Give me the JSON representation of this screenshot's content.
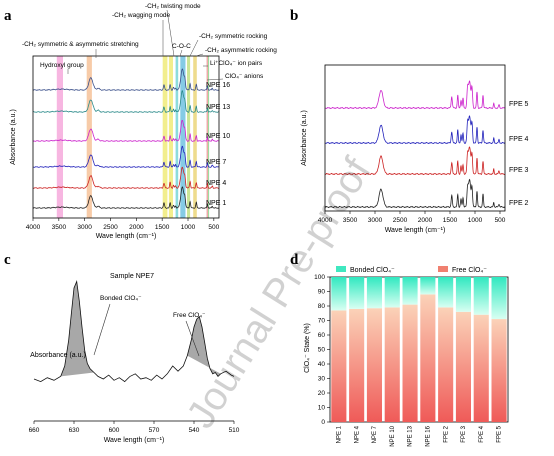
{
  "chart_data": [
    {
      "panel": "a",
      "type": "line",
      "ylabel": "Absorbance (a.u.)",
      "xlabel": "Wave length (cm⁻¹)",
      "xlim": [
        4000,
        400
      ],
      "xticks": [
        4000,
        3500,
        3000,
        2500,
        2000,
        1500,
        1000,
        500
      ],
      "series": [
        {
          "name": "NPE 1",
          "color": "#222222"
        },
        {
          "name": "NPE 4",
          "color": "#cc2222"
        },
        {
          "name": "NPE 7",
          "color": "#2222bb"
        },
        {
          "name": "NPE 10",
          "color": "#cc22cc"
        },
        {
          "name": "NPE 13",
          "color": "#2a8a8a"
        },
        {
          "name": "NPE 16",
          "color": "#3a4f8a"
        }
      ],
      "bands": [
        {
          "x": [
            3540,
            3420
          ],
          "color": "#f07ac8",
          "label": "Hydroxyl group"
        },
        {
          "x": [
            2960,
            2860
          ],
          "color": "#f0a060",
          "label": "-CH₂ symmetric & asymmetric stretching"
        },
        {
          "x": [
            1490,
            1400
          ],
          "color": "#e8e030",
          "label": "-CH₂ wagging mode"
        },
        {
          "x": [
            1370,
            1290
          ],
          "color": "#e8e030",
          "label": "-CH₂ twisting mode"
        },
        {
          "x": [
            1240,
            1190
          ],
          "color": "#30c0c0",
          "label": "C-O-C"
        },
        {
          "x": [
            1150,
            1050
          ],
          "color": "#20a0d0",
          "label": "C-O-C"
        },
        {
          "x": [
            1020,
            960
          ],
          "color": "#a0d040",
          "label": "-CH₂ symmetric rocking"
        },
        {
          "x": [
            900,
            830
          ],
          "color": "#e0c030",
          "label": "-CH₂ asymmetric rocking"
        },
        {
          "x": [
            640,
            615
          ],
          "color": "#e05050",
          "label": "Li⁺ClO₄⁻ ion pairs"
        },
        {
          "x": [
            612,
            590
          ],
          "color": "#50c050",
          "label": "ClO₄⁻ anions"
        }
      ],
      "annotations": [
        "-CH₂ twisting mode",
        "-CH₂ wagging mode",
        "-CH₂ symmetric & asymmetric stretching",
        "C-O-C",
        "-CH₂ symmetric rocking",
        "-CH₂ asymmetric rocking",
        "Li⁺ClO₄⁻ ion pairs",
        "ClO₄⁻ anions",
        "Hydroxyl group"
      ]
    },
    {
      "panel": "b",
      "type": "line",
      "ylabel": "Absorbance (a.u.)",
      "xlabel": "Wave length (cm⁻¹)",
      "xlim": [
        4000,
        400
      ],
      "xticks": [
        4000,
        3500,
        3000,
        2500,
        2000,
        1500,
        1000,
        500
      ],
      "series": [
        {
          "name": "FPE 2",
          "color": "#222222"
        },
        {
          "name": "FPE 3",
          "color": "#cc2222"
        },
        {
          "name": "FPE 4",
          "color": "#2222bb"
        },
        {
          "name": "FPE 5",
          "color": "#cc22cc"
        }
      ]
    },
    {
      "panel": "c",
      "type": "line",
      "title": "Sample NPE7",
      "ylabel": "Absorbance (a.u.)",
      "xlabel": "Wave length (cm⁻¹)",
      "xlim": [
        660,
        510
      ],
      "xticks": [
        660,
        630,
        600,
        570,
        540,
        510
      ],
      "x": [
        660,
        655,
        650,
        645,
        640,
        637,
        634,
        632,
        630,
        628,
        626,
        624,
        622,
        620,
        618,
        615,
        612,
        608,
        604,
        600,
        596,
        592,
        588,
        584,
        580,
        576,
        572,
        568,
        564,
        560,
        556,
        552,
        548,
        545,
        542,
        540,
        538,
        536,
        534,
        532,
        530,
        528,
        526,
        524,
        522,
        520,
        516,
        512,
        510
      ],
      "y": [
        0.2,
        0.18,
        0.21,
        0.19,
        0.22,
        0.3,
        0.5,
        0.7,
        0.9,
        0.95,
        0.8,
        0.6,
        0.42,
        0.32,
        0.28,
        0.25,
        0.22,
        0.2,
        0.23,
        0.19,
        0.21,
        0.18,
        0.22,
        0.24,
        0.2,
        0.21,
        0.19,
        0.23,
        0.2,
        0.24,
        0.3,
        0.26,
        0.3,
        0.38,
        0.5,
        0.6,
        0.66,
        0.68,
        0.6,
        0.48,
        0.36,
        0.28,
        0.24,
        0.25,
        0.22,
        0.24,
        0.26,
        0.23,
        0.22
      ],
      "annotations": [
        "Bonded ClO₄⁻",
        "Free ClO₄⁻"
      ]
    },
    {
      "panel": "d",
      "type": "bar",
      "stacked": true,
      "ylabel": "ClO₄⁻ State (%)",
      "ylim": [
        0,
        100
      ],
      "yticks": [
        0,
        10,
        20,
        30,
        40,
        50,
        60,
        70,
        80,
        90,
        100
      ],
      "categories": [
        "NPE 1",
        "NPE 4",
        "NPE 7",
        "NPE 10",
        "NPE 13",
        "NPE 16",
        "FPE 2",
        "FPE 3",
        "FPE 4",
        "FPE 5"
      ],
      "series": [
        {
          "name": "Free ClO₄⁻",
          "values": [
            77,
            78,
            78.5,
            79,
            81,
            88,
            79,
            76,
            74,
            71
          ],
          "color": "#f08070"
        },
        {
          "name": "Bonded ClO₄⁻",
          "values": [
            23,
            22,
            21.5,
            21,
            19,
            12,
            21,
            24,
            26,
            29
          ],
          "color": "#40e8c0"
        }
      ],
      "legend": "top"
    }
  ],
  "panel_labels": [
    "a",
    "b",
    "c",
    "d"
  ],
  "watermark": "Journal Pre-proof"
}
